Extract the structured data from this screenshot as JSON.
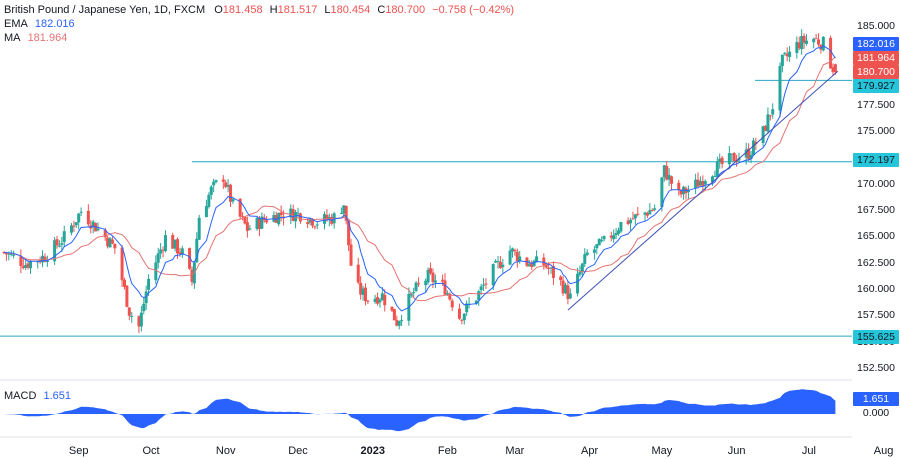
{
  "header": {
    "instrument": "British Pound / Japanese Yen, 1D, FXCM",
    "o_label": "O",
    "o_value": "181.458",
    "h_label": "H",
    "h_value": "181.517",
    "l_label": "L",
    "l_value": "180.454",
    "c_label": "C",
    "c_value": "180.700",
    "change": "−0.758 (−0.42%)"
  },
  "indicators": {
    "ema_label": "EMA",
    "ema_value": "182.016",
    "ma_label": "MA",
    "ma_value": "181.964",
    "macd_label": "MACD",
    "macd_value": "1.651"
  },
  "colors": {
    "up": "#26a69a",
    "down": "#ef5350",
    "ema": "#2962ff",
    "ma": "#e57373",
    "level": "#26a7c4",
    "trend": "#3f51b5",
    "macd": "#2962ff"
  },
  "price_tags": {
    "ema": "182.016",
    "ma": "181.964",
    "close": "180.700",
    "support": "179.927",
    "resistance": "172.197",
    "low_level": "155.625",
    "macd": "1.651",
    "macd_zero": "0.000"
  },
  "chart_data": {
    "type": "candlestick",
    "instrument": "GBP/JPY",
    "timeframe": "1D",
    "y_axis": {
      "ticks": [
        "185.000",
        "182.500",
        "180.000",
        "177.500",
        "175.000",
        "172.500",
        "170.000",
        "167.500",
        "165.000",
        "162.500",
        "160.000",
        "157.500",
        "155.000",
        "152.500"
      ],
      "ylim": [
        151.5,
        186
      ]
    },
    "x_axis": {
      "ticks": [
        "Sep",
        "Oct",
        "Nov",
        "Dec",
        "2023",
        "Feb",
        "Mar",
        "Apr",
        "May",
        "Jun",
        "Jul",
        "Aug"
      ]
    },
    "horizontal_levels": [
      172.197,
      155.625,
      179.927
    ],
    "trendline": {
      "from": [
        "Mar 23 2023",
        158.1
      ],
      "to": [
        "Jul 13 2023",
        180.8
      ]
    },
    "approx_path": [
      [
        "Aug 1",
        163.6
      ],
      [
        "Aug 10",
        162.5
      ],
      [
        "Aug 18",
        163.2
      ],
      [
        "Aug 26",
        165.0
      ],
      [
        "Sep 2",
        167.5
      ],
      [
        "Sep 9",
        165.8
      ],
      [
        "Sep 16",
        164.0
      ],
      [
        "Sep 22",
        158.0
      ],
      [
        "Sep 26",
        156.5
      ],
      [
        "Sep 30",
        161.0
      ],
      [
        "Oct 7",
        165.0
      ],
      [
        "Oct 14",
        163.5
      ],
      [
        "Oct 18",
        160.8
      ],
      [
        "Oct 21",
        167.0
      ],
      [
        "Oct 26",
        169.5
      ],
      [
        "Oct 31",
        170.8
      ],
      [
        "Nov 4",
        168.0
      ],
      [
        "Nov 10",
        165.8
      ],
      [
        "Nov 18",
        166.8
      ],
      [
        "Nov 25",
        167.3
      ],
      [
        "Dec 2",
        167.2
      ],
      [
        "Dec 9",
        166.5
      ],
      [
        "Dec 16",
        166.9
      ],
      [
        "Dec 20",
        168.2
      ],
      [
        "Dec 24",
        160.5
      ],
      [
        "Dec 30",
        159.2
      ],
      [
        "Jan 5",
        159.5
      ],
      [
        "Jan 11",
        157.0
      ],
      [
        "Jan 18",
        159.8
      ],
      [
        "Jan 24",
        161.3
      ],
      [
        "Jan 31",
        160.2
      ],
      [
        "Feb 6",
        157.5
      ],
      [
        "Feb 12",
        159.0
      ],
      [
        "Feb 20",
        161.8
      ],
      [
        "Feb 27",
        163.8
      ],
      [
        "Mar 6",
        162.6
      ],
      [
        "Mar 13",
        162.5
      ],
      [
        "Mar 20",
        160.7
      ],
      [
        "Mar 24",
        159.3
      ],
      [
        "Mar 31",
        163.4
      ],
      [
        "Apr 7",
        164.5
      ],
      [
        "Apr 14",
        166.3
      ],
      [
        "Apr 21",
        167.0
      ],
      [
        "Apr 28",
        167.8
      ],
      [
        "May 2",
        171.4
      ],
      [
        "May 8",
        169.0
      ],
      [
        "May 15",
        170.0
      ],
      [
        "May 22",
        171.4
      ],
      [
        "May 31",
        172.6
      ],
      [
        "Jun 6",
        173.0
      ],
      [
        "Jun 12",
        175.0
      ],
      [
        "Jun 16",
        177.5
      ],
      [
        "Jun 20",
        181.7
      ],
      [
        "Jun 27",
        183.5
      ],
      [
        "Jul 3",
        183.9
      ],
      [
        "Jul 7",
        183.4
      ],
      [
        "Jul 10",
        181.6
      ],
      [
        "Jul 12",
        180.7
      ]
    ],
    "last_bar": {
      "open": 181.458,
      "high": 181.517,
      "low": 180.454,
      "close": 180.7
    },
    "macd_ticks": [
      "1.651",
      "0.000"
    ]
  }
}
